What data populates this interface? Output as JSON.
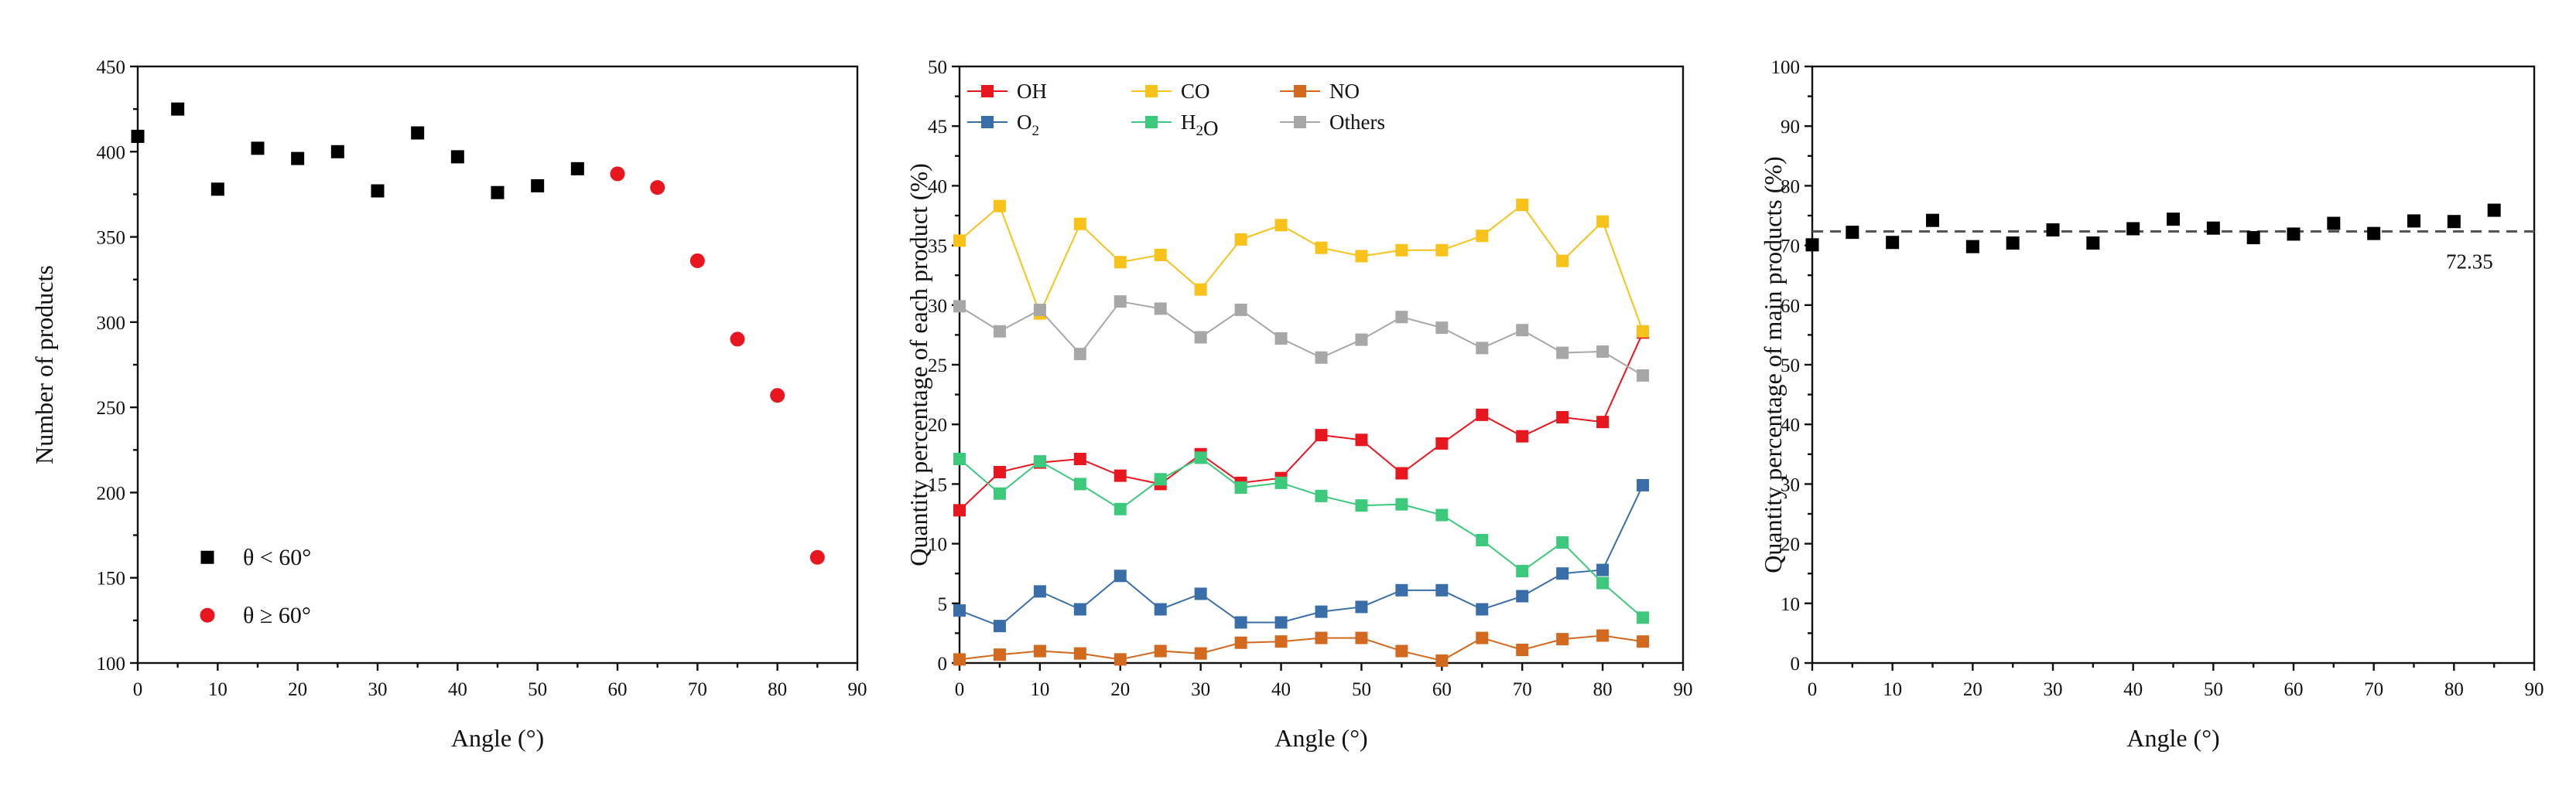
{
  "chart_data": [
    {
      "type": "scatter",
      "xlabel": "Angle (°)",
      "ylabel": "Number of products",
      "xlim": [
        0,
        90
      ],
      "ylim": [
        100,
        450
      ],
      "xticks": [
        "0",
        "10",
        "20",
        "30",
        "40",
        "50",
        "60",
        "70",
        "80",
        "90"
      ],
      "yticks": [
        "100",
        "150",
        "200",
        "250",
        "300",
        "350",
        "400",
        "450"
      ],
      "legend_position": "bottom-left",
      "series": [
        {
          "name": "θ < 60°",
          "color": "#000000",
          "marker": "square",
          "x": [
            0,
            5,
            10,
            15,
            20,
            25,
            30,
            35,
            40,
            45,
            50,
            55
          ],
          "values": [
            409,
            425,
            378,
            402,
            396,
            400,
            377,
            411,
            397,
            376,
            380,
            390
          ]
        },
        {
          "name": "θ ≥ 60°",
          "color": "#e8161f",
          "marker": "circle",
          "x": [
            60,
            65,
            70,
            75,
            80,
            85
          ],
          "values": [
            387,
            379,
            336,
            290,
            257,
            162
          ]
        }
      ]
    },
    {
      "type": "line",
      "xlabel": "Angle (°)",
      "ylabel": "Quantity percentage of each product (%)",
      "xlim": [
        0,
        90
      ],
      "ylim": [
        0,
        50
      ],
      "xticks": [
        "0",
        "10",
        "20",
        "30",
        "40",
        "50",
        "60",
        "70",
        "80",
        "90"
      ],
      "yticks": [
        "0",
        "5",
        "10",
        "15",
        "20",
        "25",
        "30",
        "35",
        "40",
        "45",
        "50"
      ],
      "legend_position": "top-left",
      "x": [
        0,
        5,
        10,
        15,
        20,
        25,
        30,
        35,
        40,
        45,
        50,
        55,
        60,
        65,
        70,
        75,
        80,
        85
      ],
      "series": [
        {
          "name": "OH",
          "label_parts": [
            "OH"
          ],
          "color": "#e8161f",
          "values": [
            12.8,
            16.0,
            16.8,
            17.1,
            15.7,
            15.0,
            17.5,
            15.1,
            15.5,
            19.1,
            18.7,
            15.9,
            18.4,
            20.8,
            19.0,
            20.6,
            20.2,
            27.7
          ]
        },
        {
          "name": "CO",
          "label_parts": [
            "CO"
          ],
          "color": "#f7c21a",
          "values": [
            35.4,
            38.3,
            29.3,
            36.8,
            33.6,
            34.2,
            31.3,
            35.5,
            36.7,
            34.8,
            34.1,
            34.6,
            34.6,
            35.8,
            38.4,
            33.7,
            37.0,
            27.8
          ]
        },
        {
          "name": "NO",
          "label_parts": [
            "NO"
          ],
          "color": "#d2691e",
          "values": [
            0.3,
            0.7,
            1.0,
            0.8,
            0.3,
            1.0,
            0.8,
            1.7,
            1.8,
            2.1,
            2.1,
            1.0,
            0.2,
            2.1,
            1.1,
            2.0,
            2.3,
            1.8
          ]
        },
        {
          "name": "O2",
          "label_parts": [
            "O",
            "2"
          ],
          "color": "#3a6ea8",
          "values": [
            4.4,
            3.1,
            6.0,
            4.5,
            7.3,
            4.5,
            5.8,
            3.4,
            3.4,
            4.3,
            4.7,
            6.1,
            6.1,
            4.5,
            5.6,
            7.5,
            7.8,
            14.9
          ]
        },
        {
          "name": "H2O",
          "label_parts": [
            "H",
            "2",
            "O"
          ],
          "color": "#3cc97b",
          "values": [
            17.1,
            14.2,
            16.9,
            15.0,
            12.9,
            15.4,
            17.2,
            14.7,
            15.1,
            14.0,
            13.2,
            13.3,
            12.4,
            10.3,
            7.7,
            10.1,
            6.7,
            3.8
          ]
        },
        {
          "name": "Others",
          "label_parts": [
            "Others"
          ],
          "color": "#a7a7a7",
          "values": [
            29.9,
            27.8,
            29.6,
            25.9,
            30.3,
            29.7,
            27.3,
            29.6,
            27.2,
            25.6,
            27.1,
            29.0,
            28.1,
            26.4,
            27.9,
            26.0,
            26.1,
            24.1
          ]
        }
      ]
    },
    {
      "type": "scatter",
      "xlabel": "Angle (°)",
      "ylabel": "Quantity percentage of main products (%)",
      "xlim": [
        0,
        90
      ],
      "ylim": [
        0,
        100
      ],
      "xticks": [
        "0",
        "10",
        "20",
        "30",
        "40",
        "50",
        "60",
        "70",
        "80",
        "90"
      ],
      "yticks": [
        "0",
        "10",
        "20",
        "30",
        "40",
        "50",
        "60",
        "70",
        "80",
        "90",
        "100"
      ],
      "series": [
        {
          "name": "main products",
          "color": "#000000",
          "marker": "square",
          "x": [
            0,
            5,
            10,
            15,
            20,
            25,
            30,
            35,
            40,
            45,
            50,
            55,
            60,
            65,
            70,
            75,
            80,
            85
          ],
          "values": [
            70.1,
            72.2,
            70.5,
            74.2,
            69.8,
            70.4,
            72.6,
            70.4,
            72.8,
            74.4,
            72.9,
            71.3,
            71.9,
            73.7,
            72.0,
            74.1,
            74.0,
            75.9
          ]
        }
      ],
      "reference_line": {
        "value": 72.35,
        "label": "72.35",
        "style": "dashed",
        "color": "#555555"
      }
    }
  ]
}
